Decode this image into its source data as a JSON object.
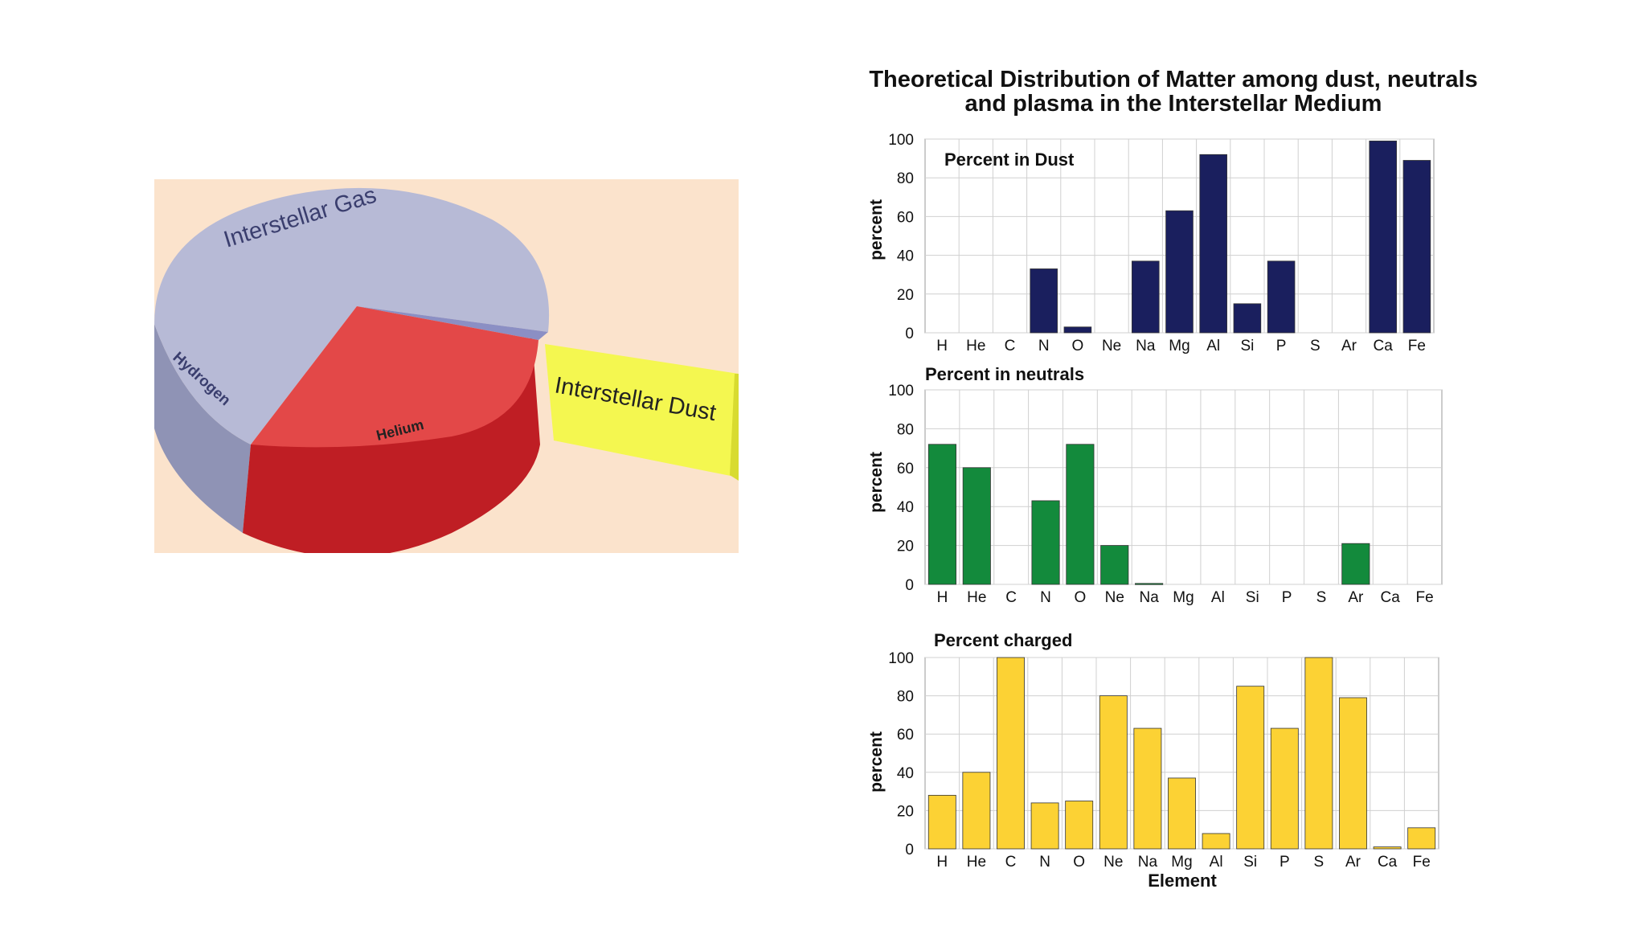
{
  "pie_figure": {
    "chart_data": {
      "type": "pie",
      "categories": [
        "Interstellar Gas",
        "Hydrogen",
        "Helium",
        "Interstellar Dust"
      ],
      "labels_shown": [
        "Interstellar Gas",
        "Hydrogen",
        "Helium",
        "Interstellar Dust"
      ]
    },
    "colors": {
      "background": "#fbe3cc",
      "gas": "#b9bcd8",
      "helium": "#d93030",
      "dust": "#f2f54a"
    }
  },
  "figure": {
    "title_line1": "Theoretical Distribution of Matter among dust, neutrals",
    "title_line2": "and plasma in the Interstellar Medium",
    "xlabel": "Element"
  },
  "chart_data": [
    {
      "type": "bar",
      "title": "Percent in Dust",
      "ylabel": "percent",
      "ylim": [
        0,
        100
      ],
      "yticks": [
        0,
        20,
        40,
        60,
        80,
        100
      ],
      "categories": [
        "H",
        "He",
        "C",
        "N",
        "O",
        "Ne",
        "Na",
        "Mg",
        "Al",
        "Si",
        "P",
        "S",
        "Ar",
        "Ca",
        "Fe"
      ],
      "values": [
        0,
        0,
        0,
        33,
        3,
        0,
        37,
        63,
        92,
        15,
        37,
        0,
        0,
        99,
        89
      ],
      "color": "#1a1f5e",
      "grid": true
    },
    {
      "type": "bar",
      "title": "Percent in neutrals",
      "ylabel": "percent",
      "ylim": [
        0,
        100
      ],
      "yticks": [
        0,
        20,
        40,
        60,
        80,
        100
      ],
      "categories": [
        "H",
        "He",
        "C",
        "N",
        "O",
        "Ne",
        "Na",
        "Mg",
        "Al",
        "Si",
        "P",
        "S",
        "Ar",
        "Ca",
        "Fe"
      ],
      "values": [
        72,
        60,
        0,
        43,
        72,
        20,
        0.5,
        0,
        0,
        0,
        0,
        0,
        21,
        0,
        0
      ],
      "color": "#138a3c",
      "grid": true
    },
    {
      "type": "bar",
      "title": "Percent charged",
      "ylabel": "percent",
      "xlabel": "Element",
      "ylim": [
        0,
        100
      ],
      "yticks": [
        0,
        20,
        40,
        60,
        80,
        100
      ],
      "categories": [
        "H",
        "He",
        "C",
        "N",
        "O",
        "Ne",
        "Na",
        "Mg",
        "Al",
        "Si",
        "P",
        "S",
        "Ar",
        "Ca",
        "Fe"
      ],
      "values": [
        28,
        40,
        100,
        24,
        25,
        80,
        63,
        37,
        8,
        85,
        63,
        100,
        79,
        1,
        11
      ],
      "color": "#fcd234",
      "grid": true
    }
  ]
}
